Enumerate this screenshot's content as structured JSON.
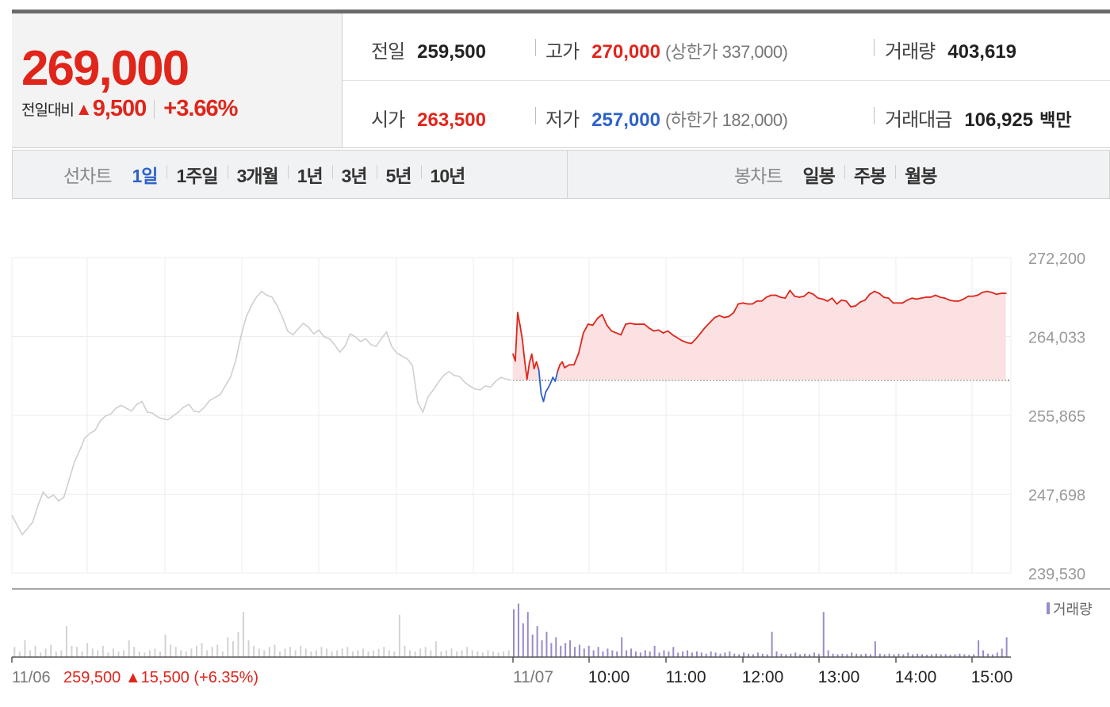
{
  "quote": {
    "price": "269,000",
    "change_label": "전일대비",
    "change_arrow": "▲",
    "change_value": "9,500",
    "change_rate": "+3.66%"
  },
  "info": {
    "prev_close": {
      "label": "전일",
      "value": "259,500"
    },
    "high": {
      "label": "고가",
      "value": "270,000",
      "limit": "(상한가 337,000)"
    },
    "volume": {
      "label": "거래량",
      "value": "403,619"
    },
    "open": {
      "label": "시가",
      "value": "263,500"
    },
    "low": {
      "label": "저가",
      "value": "257,000",
      "limit": "(하한가 182,000)"
    },
    "amount": {
      "label": "거래대금",
      "value": "106,925",
      "unit": "백만"
    }
  },
  "tabs": {
    "line_chart_label": "선차트",
    "line_periods": [
      "1일",
      "1주일",
      "3개월",
      "1년",
      "3년",
      "5년",
      "10년"
    ],
    "active_period": "1일",
    "candle_chart_label": "봉차트",
    "candle_periods": [
      "일봉",
      "주봉",
      "월봉"
    ]
  },
  "colors": {
    "up": "#e0251b",
    "down": "#2d62c9",
    "prev_day_line": "#cfcfcf",
    "volume_today": "#9b8ac9",
    "volume_prev": "#d2d2d2",
    "fill_up": "#fbe1e1"
  },
  "chart_data": {
    "type": "line",
    "y_ticks": [
      "272,200",
      "264,033",
      "255,865",
      "247,698",
      "239,530"
    ],
    "ylim": [
      239530,
      272200
    ],
    "baseline_price": 259500,
    "x_ticks": [
      "11/07",
      "10:00",
      "11:00",
      "12:00",
      "13:00",
      "14:00",
      "15:00"
    ],
    "prev_day_label": "11/06",
    "prev_day_close": "259,500",
    "prev_day_arrow": "▲",
    "prev_day_change": "15,500",
    "prev_day_rate": "(+6.35%)",
    "volume_legend": "거래량",
    "prev_day_series": [
      [
        0,
        245500
      ],
      [
        2,
        243500
      ],
      [
        4,
        244800
      ],
      [
        5,
        246500
      ],
      [
        6,
        247900
      ],
      [
        7,
        247300
      ],
      [
        8,
        247600
      ],
      [
        9,
        247000
      ],
      [
        10,
        247400
      ],
      [
        12,
        251000
      ],
      [
        13,
        252200
      ],
      [
        14,
        253500
      ],
      [
        15,
        254000
      ],
      [
        16,
        254300
      ],
      [
        17,
        255300
      ],
      [
        18,
        255800
      ],
      [
        19,
        256000
      ],
      [
        20,
        256600
      ],
      [
        21,
        256900
      ],
      [
        22,
        256600
      ],
      [
        23,
        256300
      ],
      [
        24,
        257000
      ],
      [
        25,
        257300
      ],
      [
        26,
        256200
      ],
      [
        27,
        256100
      ],
      [
        28,
        255700
      ],
      [
        29,
        255500
      ],
      [
        30,
        255400
      ],
      [
        31,
        255800
      ],
      [
        32,
        256200
      ],
      [
        33,
        256700
      ],
      [
        34,
        257000
      ],
      [
        35,
        256300
      ],
      [
        36,
        256200
      ],
      [
        37,
        256700
      ],
      [
        38,
        257400
      ],
      [
        40,
        258000
      ],
      [
        42,
        259800
      ],
      [
        43,
        261500
      ],
      [
        44,
        264000
      ],
      [
        45,
        266000
      ],
      [
        46,
        267200
      ],
      [
        47,
        268100
      ],
      [
        48,
        268700
      ],
      [
        49,
        268300
      ],
      [
        50,
        268100
      ],
      [
        51,
        267200
      ],
      [
        52,
        266000
      ],
      [
        53,
        264600
      ],
      [
        54,
        264200
      ],
      [
        55,
        264800
      ],
      [
        56,
        265400
      ],
      [
        57,
        265000
      ],
      [
        58,
        264300
      ],
      [
        59,
        264700
      ],
      [
        60,
        264000
      ],
      [
        61,
        263800
      ],
      [
        62,
        263200
      ],
      [
        63,
        262400
      ],
      [
        64,
        263000
      ],
      [
        65,
        264300
      ],
      [
        66,
        264000
      ],
      [
        67,
        263500
      ],
      [
        68,
        263800
      ],
      [
        69,
        263200
      ],
      [
        70,
        263000
      ],
      [
        71,
        263800
      ],
      [
        72,
        264500
      ],
      [
        73,
        263000
      ],
      [
        74,
        262300
      ],
      [
        75,
        262000
      ],
      [
        76,
        261700
      ],
      [
        77,
        261000
      ],
      [
        78,
        257200
      ],
      [
        79,
        256200
      ],
      [
        80,
        257800
      ],
      [
        81,
        258500
      ],
      [
        82,
        259300
      ],
      [
        83,
        260000
      ],
      [
        84,
        260400
      ],
      [
        85,
        260000
      ],
      [
        86,
        259900
      ],
      [
        87,
        259300
      ],
      [
        88,
        258900
      ],
      [
        89,
        258600
      ],
      [
        90,
        258500
      ],
      [
        91,
        258900
      ],
      [
        92,
        258800
      ],
      [
        93,
        259400
      ],
      [
        94,
        259800
      ],
      [
        95,
        259600
      ],
      [
        96,
        259500
      ]
    ],
    "today_series": [
      [
        0,
        262200
      ],
      [
        0.5,
        261500
      ],
      [
        1,
        266500
      ],
      [
        1.5,
        265200
      ],
      [
        2,
        263700
      ],
      [
        2.5,
        261500
      ],
      [
        3,
        259600
      ],
      [
        3.5,
        261300
      ],
      [
        4,
        262200
      ],
      [
        4.5,
        260700
      ],
      [
        5,
        261400
      ],
      [
        5.5,
        260600
      ],
      [
        6,
        258100
      ],
      [
        6.5,
        257300
      ],
      [
        7,
        258300
      ],
      [
        7.5,
        258700
      ],
      [
        8,
        259200
      ],
      [
        8.5,
        259800
      ],
      [
        9,
        259400
      ],
      [
        9.5,
        260400
      ],
      [
        10,
        261100
      ],
      [
        10.5,
        261400
      ],
      [
        11,
        260800
      ],
      [
        12,
        261100
      ],
      [
        13,
        261100
      ],
      [
        14,
        262300
      ],
      [
        15,
        264400
      ],
      [
        16,
        265300
      ],
      [
        17,
        265200
      ],
      [
        18,
        265900
      ],
      [
        19,
        266300
      ],
      [
        20,
        265200
      ],
      [
        21,
        264600
      ],
      [
        22,
        264400
      ],
      [
        23,
        264200
      ],
      [
        24,
        265300
      ],
      [
        25,
        265400
      ],
      [
        26,
        265300
      ],
      [
        27,
        265300
      ],
      [
        28,
        265300
      ],
      [
        29,
        264900
      ],
      [
        30,
        264600
      ],
      [
        31,
        264700
      ],
      [
        32,
        264400
      ],
      [
        33,
        264600
      ],
      [
        34,
        264200
      ],
      [
        35,
        263900
      ],
      [
        36,
        263600
      ],
      [
        37,
        263400
      ],
      [
        38,
        263300
      ],
      [
        39,
        263800
      ],
      [
        40,
        264400
      ],
      [
        41,
        265000
      ],
      [
        42,
        265500
      ],
      [
        43,
        266000
      ],
      [
        44,
        266200
      ],
      [
        45,
        266000
      ],
      [
        46,
        266100
      ],
      [
        47,
        266500
      ],
      [
        48,
        267400
      ],
      [
        49,
        267500
      ],
      [
        50,
        267400
      ],
      [
        51,
        267400
      ],
      [
        52,
        267700
      ],
      [
        53,
        267700
      ],
      [
        54,
        268100
      ],
      [
        55,
        268300
      ],
      [
        56,
        268300
      ],
      [
        57,
        268100
      ],
      [
        58,
        268000
      ],
      [
        59,
        268800
      ],
      [
        60,
        268200
      ],
      [
        61,
        268100
      ],
      [
        62,
        268200
      ],
      [
        63,
        268600
      ],
      [
        64,
        268400
      ],
      [
        65,
        268000
      ],
      [
        66,
        267900
      ],
      [
        67,
        267700
      ],
      [
        68,
        268000
      ],
      [
        69,
        267400
      ],
      [
        70,
        267800
      ],
      [
        71,
        267700
      ],
      [
        72,
        267100
      ],
      [
        73,
        267200
      ],
      [
        74,
        267600
      ],
      [
        75,
        267800
      ],
      [
        76,
        268400
      ],
      [
        77,
        268700
      ],
      [
        78,
        268500
      ],
      [
        79,
        268100
      ],
      [
        80,
        268000
      ],
      [
        81,
        267500
      ],
      [
        82,
        267500
      ],
      [
        83,
        267500
      ],
      [
        84,
        267800
      ],
      [
        85,
        268000
      ],
      [
        86,
        267900
      ],
      [
        87,
        268000
      ],
      [
        88,
        268100
      ],
      [
        89,
        268100
      ],
      [
        90,
        268300
      ],
      [
        91,
        268100
      ],
      [
        92,
        268000
      ],
      [
        93,
        267800
      ],
      [
        94,
        267700
      ],
      [
        95,
        267700
      ],
      [
        96,
        267900
      ],
      [
        97,
        268200
      ],
      [
        98,
        268200
      ],
      [
        99,
        268300
      ],
      [
        100,
        268600
      ],
      [
        101,
        268700
      ],
      [
        102,
        268600
      ],
      [
        103,
        268400
      ],
      [
        104,
        268500
      ],
      [
        105,
        268500
      ]
    ],
    "prev_day_volume": [
      0.18,
      0.1,
      0.3,
      0.12,
      0.2,
      0.08,
      0.15,
      0.22,
      0.1,
      0.12,
      0.55,
      0.2,
      0.18,
      0.1,
      0.25,
      0.15,
      0.12,
      0.2,
      0.08,
      0.15,
      0.1,
      0.12,
      0.3,
      0.18,
      0.1,
      0.08,
      0.12,
      0.15,
      0.1,
      0.4,
      0.22,
      0.18,
      0.12,
      0.1,
      0.15,
      0.2,
      0.25,
      0.12,
      0.18,
      0.22,
      0.1,
      0.35,
      0.28,
      0.45,
      0.8,
      0.3,
      0.2,
      0.15,
      0.12,
      0.18,
      0.22,
      0.1,
      0.15,
      0.18,
      0.12,
      0.2,
      0.15,
      0.1,
      0.12,
      0.18,
      0.15,
      0.1,
      0.12,
      0.15,
      0.18,
      0.1,
      0.12,
      0.15,
      0.1,
      0.12,
      0.14,
      0.18,
      0.12,
      0.1,
      0.75,
      0.2,
      0.12,
      0.1,
      0.15,
      0.18,
      0.12,
      0.28,
      0.1,
      0.12,
      0.15,
      0.1,
      0.12,
      0.18,
      0.12,
      0.1,
      0.08,
      0.12,
      0.1,
      0.08,
      0.1,
      0.12
    ],
    "today_volume": [
      0.85,
      0.95,
      0.6,
      0.8,
      0.4,
      0.55,
      0.3,
      0.45,
      0.25,
      0.35,
      0.2,
      0.25,
      0.3,
      0.18,
      0.22,
      0.15,
      0.2,
      0.12,
      0.18,
      0.1,
      0.15,
      0.12,
      0.1,
      0.35,
      0.12,
      0.15,
      0.1,
      0.08,
      0.12,
      0.1,
      0.2,
      0.08,
      0.12,
      0.1,
      0.18,
      0.08,
      0.1,
      0.12,
      0.08,
      0.1,
      0.08,
      0.06,
      0.1,
      0.08,
      0.06,
      0.08,
      0.1,
      0.06,
      0.05,
      0.08,
      0.06,
      0.05,
      0.08,
      0.06,
      0.05,
      0.45,
      0.1,
      0.06,
      0.05,
      0.06,
      0.08,
      0.05,
      0.06,
      0.05,
      0.08,
      0.06,
      0.8,
      0.12,
      0.06,
      0.05,
      0.06,
      0.05,
      0.08,
      0.06,
      0.05,
      0.06,
      0.05,
      0.28,
      0.06,
      0.05,
      0.06,
      0.05,
      0.06,
      0.05,
      0.08,
      0.05,
      0.06,
      0.05,
      0.04,
      0.05,
      0.06,
      0.05,
      0.05,
      0.04,
      0.05,
      0.06,
      0.05,
      0.04,
      0.05,
      0.3,
      0.12,
      0.06,
      0.05,
      0.08,
      0.15,
      0.35
    ]
  }
}
